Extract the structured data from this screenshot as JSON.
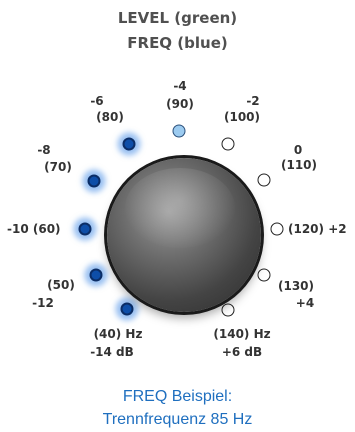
{
  "titles": {
    "level": "LEVEL (green)",
    "freq": "FREQ (blue)"
  },
  "knob_labels": {
    "pos_minus4_level": "-4",
    "pos_minus4_freq": "(90)",
    "pos_minus6_level": "-6",
    "pos_minus6_freq": "(80)",
    "pos_minus2_level": "-2",
    "pos_minus2_freq": "(100)",
    "pos_minus8_level": "-8",
    "pos_minus8_freq": "(70)",
    "pos_0_level": "0",
    "pos_0_freq": "(110)",
    "pos_minus10": "-10 (60)",
    "pos_plus2": "(120) +2",
    "pos_minus12_freq": "(50)",
    "pos_minus12_level": "-12",
    "pos_plus4_freq": "(130)",
    "pos_plus4_level": "+4",
    "pos_minus14_freq": "(40) Hz",
    "pos_minus14_level": "-14 dB",
    "pos_plus6_freq": "(140) Hz",
    "pos_plus6_level": "+6 dB"
  },
  "indicator_states": [
    "active",
    "active",
    "active",
    "active",
    "active",
    "selected",
    "off",
    "off",
    "off",
    "off",
    "off"
  ],
  "colors": {
    "active_led": "#0e4ea8",
    "selected_led": "#9ccbf0",
    "caption": "#1f6fbf"
  },
  "caption": {
    "line1": "FREQ Beispiel:",
    "line2": "Trennfrequenz 85 Hz"
  }
}
